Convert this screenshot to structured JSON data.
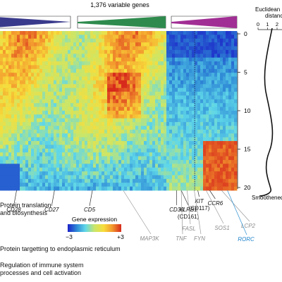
{
  "chart_data": {
    "type": "heatmap",
    "title": "1,376 variable genes",
    "rows_axis": {
      "label": "Smoothened",
      "ticks": [
        "0",
        "5",
        "10",
        "15",
        "20"
      ],
      "range": [
        0,
        20
      ]
    },
    "distance_axis": {
      "label_line1": "Euclidean",
      "label_line2": "distance",
      "ticks": [
        "0",
        "1",
        "2"
      ]
    },
    "colorbar": {
      "label": "Gene expression",
      "min_label": "−3",
      "max_label": "+3",
      "range": [
        -3,
        3
      ],
      "colors": [
        "#1b22c8",
        "#2f8ad6",
        "#5fd7e9",
        "#c9e66a",
        "#f7dd3b",
        "#f39a2e",
        "#d72a1c"
      ]
    },
    "cluster_bars": [
      {
        "color": "#3a3a8c",
        "direction": "down"
      },
      {
        "color": "#2e8b4d",
        "direction": "down"
      },
      {
        "color": "#a12e94",
        "direction": "down"
      }
    ],
    "gene_labels_bottom": [
      {
        "text": "CD28",
        "col": 0.07
      },
      {
        "text": "CD27",
        "col": 0.23
      },
      {
        "text": "CD5",
        "col": 0.39
      }
    ],
    "gene_labels_right": [
      {
        "text": "CD38",
        "col": 0.745
      },
      {
        "text": "KLRB1",
        "col": 0.765
      },
      {
        "text": "(CD161)",
        "col": 0.765
      },
      {
        "text": "KIT",
        "col": 0.835
      },
      {
        "text": "(CD117)",
        "col": 0.835
      },
      {
        "text": "CCR6",
        "col": 0.885
      }
    ],
    "gene_labels_gray": [
      {
        "text": "MAP3K",
        "col": 0.52
      },
      {
        "text": "TNF",
        "col": 0.765
      },
      {
        "text": "FASL",
        "col": 0.79
      },
      {
        "text": "FYN",
        "col": 0.82
      },
      {
        "text": "SOS1",
        "col": 0.87
      },
      {
        "text": "LCP2",
        "col": 0.935
      }
    ],
    "gene_labels_blue": [
      {
        "text": "RORC",
        "col": 0.96
      }
    ],
    "go_terms": [
      {
        "line1": "Protein translation",
        "line2": "and biosynthesis"
      },
      {
        "line1": "Protein targetting to endoplasmic reticulum",
        "line2": ""
      },
      {
        "line1": "Regulation of immune system",
        "line2": "processes and cell activation"
      }
    ]
  }
}
